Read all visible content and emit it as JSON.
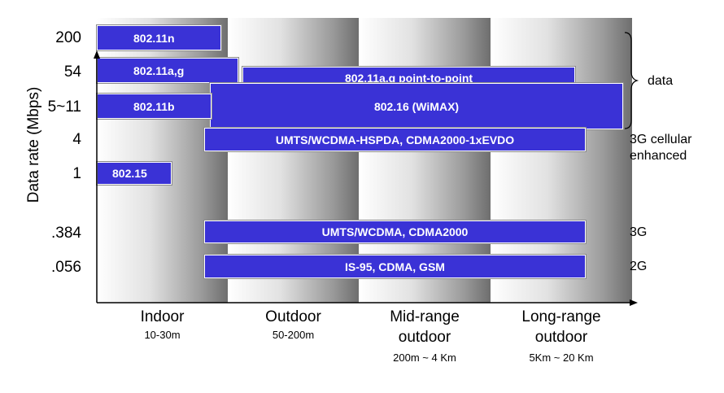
{
  "axis": {
    "y_title": "Data rate (Mbps)",
    "y_ticks": [
      "200",
      "54",
      "5~11",
      "4",
      "1",
      ".384",
      ".056"
    ]
  },
  "columns": [
    {
      "label": "Indoor",
      "range": "10-30m"
    },
    {
      "label": "Outdoor",
      "range": "50-200m"
    },
    {
      "label_line1": "Mid-range",
      "label_line2": "outdoor",
      "range": "200m ~ 4 Km"
    },
    {
      "label_line1": "Long-range",
      "label_line2": "outdoor",
      "range": "5Km ~ 20 Km"
    }
  ],
  "bars": {
    "b80211n": "802.11n",
    "b80211ag": "802.11a,g",
    "b80211ag_p2p": "802.11a,g point-to-point",
    "b80211b": "802.11b",
    "b80216": "802.16 (WiMAX)",
    "umts_hspda": "UMTS/WCDMA-HSPDA, CDMA2000-1xEVDO",
    "b80215": "802.15",
    "umts": "UMTS/WCDMA, CDMA2000",
    "is95": "IS-95, CDMA, GSM"
  },
  "side_labels": {
    "data": "data",
    "g3_enh_1": "3G cellular",
    "g3_enh_2": "enhanced",
    "g3": "3G",
    "g2": "2G"
  },
  "colors": {
    "bar_fill": "#3a32d6",
    "bar_text": "#ffffff"
  }
}
